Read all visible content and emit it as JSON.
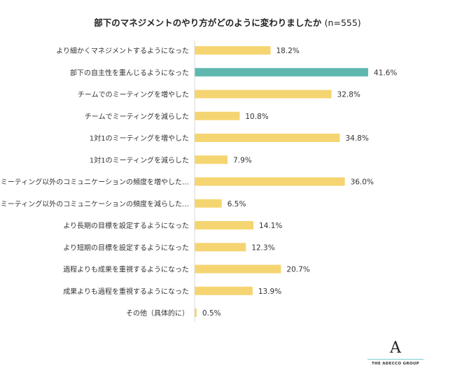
{
  "chart_data": {
    "type": "bar",
    "orientation": "horizontal",
    "title": "部下のマネジメントのやり方がどのように変わりましたか",
    "sample": "(n=555)",
    "categories": [
      "より細かくマネジメントするようになった",
      "部下の自主性を重んじるようになった",
      "チームでのミーティングを増やした",
      "チームでミーティングを減らした",
      "1対1のミーティングを増やした",
      "1対1のミーティングを減らした",
      "ミーティング以外のコミュニケーションの頻度を増やした…",
      "ミーティング以外のコミュニケーションの頻度を減らした…",
      "より長期の目標を設定するようになった",
      "より短期の目標を設定するようになった",
      "過程よりも成果を重視するようになった",
      "成果よりも過程を重視するようになった",
      "その他（具体的に）"
    ],
    "values": [
      18.2,
      41.6,
      32.8,
      10.8,
      34.8,
      7.9,
      36.0,
      6.5,
      14.1,
      12.3,
      20.7,
      13.9,
      0.5
    ],
    "value_labels": [
      "18.2%",
      "41.6%",
      "32.8%",
      "10.8%",
      "34.8%",
      "7.9%",
      "36.0%",
      "6.5%",
      "14.1%",
      "12.3%",
      "20.7%",
      "13.9%",
      "0.5%"
    ],
    "highlight_index": 1,
    "colors": {
      "default": "#f5d571",
      "highlight": "#5fb8b0"
    },
    "grid": false
  },
  "logo": {
    "text": "THE ADECCO GROUP",
    "mark": "A"
  }
}
